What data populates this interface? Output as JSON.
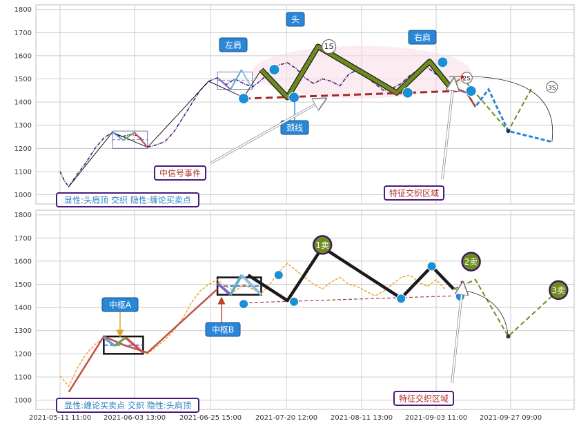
{
  "colors": {
    "accent_blue": "#1a8fd6",
    "olive": "#6e8b1e",
    "purple": "#4b1a7a",
    "dark_red": "#a52a2a",
    "orange_price": "#f0a020",
    "callout_bg": "#2a86d6",
    "signal_text": "#b0302a"
  },
  "chart_data": [
    {
      "type": "line",
      "panel": "top",
      "x_tick_labels": [],
      "y_ticks": [
        1000,
        1100,
        1200,
        1300,
        1400,
        1500,
        1600,
        1700,
        1800
      ],
      "ylim": [
        960,
        1820
      ],
      "series": [
        {
          "role": "price",
          "points": [
            [
              0,
              1100
            ],
            [
              2,
              1060
            ],
            [
              4,
              1035
            ],
            [
              8,
              1090
            ],
            [
              12,
              1140
            ],
            [
              16,
              1200
            ],
            [
              20,
              1245
            ],
            [
              24,
              1270
            ],
            [
              28,
              1250
            ],
            [
              32,
              1260
            ],
            [
              36,
              1255
            ],
            [
              40,
              1205
            ],
            [
              44,
              1215
            ],
            [
              48,
              1230
            ],
            [
              52,
              1270
            ],
            [
              56,
              1330
            ],
            [
              60,
              1390
            ],
            [
              64,
              1450
            ],
            [
              68,
              1490
            ],
            [
              72,
              1505
            ],
            [
              74,
              1490
            ],
            [
              76,
              1475
            ],
            [
              80,
              1500
            ],
            [
              84,
              1480
            ],
            [
              88,
              1465
            ],
            [
              92,
              1495
            ],
            [
              96,
              1530
            ],
            [
              100,
              1560
            ],
            [
              104,
              1570
            ],
            [
              108,
              1545
            ],
            [
              112,
              1505
            ],
            [
              116,
              1480
            ],
            [
              120,
              1500
            ],
            [
              124,
              1490
            ],
            [
              128,
              1470
            ],
            [
              132,
              1520
            ],
            [
              136,
              1540
            ],
            [
              140,
              1510
            ],
            [
              144,
              1480
            ],
            [
              148,
              1450
            ],
            [
              152,
              1460
            ],
            [
              156,
              1480
            ],
            [
              160,
              1515
            ],
            [
              164,
              1540
            ],
            [
              168,
              1550
            ],
            [
              172,
              1520
            ],
            [
              176,
              1490
            ]
          ]
        },
        {
          "role": "stroke_segments",
          "points": [
            [
              4,
              1035
            ],
            [
              24,
              1270
            ],
            [
              40,
              1205
            ],
            [
              68,
              1490
            ],
            [
              84,
              1420
            ],
            [
              92,
              1540
            ],
            [
              104,
              1420
            ],
            [
              118,
              1640
            ],
            [
              154,
              1440
            ],
            [
              169,
              1575
            ],
            [
              178,
              1470
            ]
          ]
        },
        {
          "role": "projection",
          "points": [
            [
              178,
              1470
            ],
            [
              186,
              1440
            ],
            [
              190,
              1380
            ],
            [
              196,
              1455
            ],
            [
              205,
              1275
            ],
            [
              225,
              1228
            ]
          ]
        },
        {
          "role": "projection_alt",
          "points": [
            [
              178,
              1470
            ],
            [
              184,
              1505
            ],
            [
              205,
              1275
            ],
            [
              216,
              1465
            ]
          ]
        },
        {
          "role": "neckline",
          "points": [
            [
              84,
              1415
            ],
            [
              182,
              1448
            ]
          ]
        },
        {
          "role": "center_box",
          "points": [
            [
              24,
              1200
            ],
            [
              40,
              1275
            ]
          ]
        },
        {
          "role": "center_box_2",
          "points": [
            [
              72,
              1455
            ],
            [
              88,
              1530
            ]
          ]
        }
      ],
      "key_points": [
        {
          "x": 84,
          "y": 1415,
          "label": ""
        },
        {
          "x": 98,
          "y": 1540,
          "label": ""
        },
        {
          "x": 107,
          "y": 1420,
          "label": ""
        },
        {
          "x": 123,
          "y": 1640,
          "label": "1S"
        },
        {
          "x": 159,
          "y": 1440,
          "label": ""
        },
        {
          "x": 175,
          "y": 1572,
          "label": ""
        },
        {
          "x": 188,
          "y": 1448,
          "label": ""
        },
        {
          "x": 186,
          "y": 1505,
          "label": "2S"
        },
        {
          "x": 225,
          "y": 1465,
          "label": "3S"
        }
      ],
      "annotations": [
        {
          "text": "头",
          "style": "blue_box"
        },
        {
          "text": "左肩",
          "style": "blue_box"
        },
        {
          "text": "右肩",
          "style": "blue_box"
        },
        {
          "text": "颈线",
          "style": "blue_box"
        },
        {
          "text": "中信号事件",
          "style": "purple_box"
        },
        {
          "text": "特征交织区域",
          "style": "purple_box"
        },
        {
          "text": "显性:头肩顶 交织 隐性:缠论买卖点",
          "style": "purple_box"
        }
      ]
    },
    {
      "type": "line",
      "panel": "bottom",
      "x_tick_labels": [
        "2021-05-11 11:00",
        "2021-06-03 13:00",
        "2021-06-25 15:00",
        "2021-07-20 12:00",
        "2021-08-11 13:00",
        "2021-09-03 11:00",
        "2021-09-27 09:00"
      ],
      "y_ticks": [
        1000,
        1100,
        1200,
        1300,
        1400,
        1500,
        1600,
        1700,
        1800
      ],
      "ylim": [
        960,
        1820
      ],
      "series": [
        {
          "role": "price",
          "points": [
            [
              0,
              1105
            ],
            [
              4,
              1060
            ],
            [
              8,
              1140
            ],
            [
              12,
              1200
            ],
            [
              16,
              1240
            ],
            [
              20,
              1270
            ],
            [
              24,
              1260
            ],
            [
              28,
              1240
            ],
            [
              32,
              1230
            ],
            [
              36,
              1215
            ],
            [
              40,
              1200
            ],
            [
              44,
              1230
            ],
            [
              48,
              1260
            ],
            [
              52,
              1300
            ],
            [
              56,
              1350
            ],
            [
              60,
              1420
            ],
            [
              64,
              1470
            ],
            [
              68,
              1500
            ],
            [
              72,
              1520
            ],
            [
              76,
              1490
            ],
            [
              80,
              1470
            ],
            [
              84,
              1500
            ],
            [
              88,
              1480
            ],
            [
              92,
              1460
            ],
            [
              96,
              1500
            ],
            [
              100,
              1555
            ],
            [
              104,
              1590
            ],
            [
              108,
              1560
            ],
            [
              112,
              1530
            ],
            [
              116,
              1500
            ],
            [
              120,
              1480
            ],
            [
              124,
              1510
            ],
            [
              128,
              1530
            ],
            [
              132,
              1500
            ],
            [
              136,
              1490
            ],
            [
              140,
              1470
            ],
            [
              144,
              1450
            ],
            [
              148,
              1470
            ],
            [
              152,
              1500
            ],
            [
              156,
              1530
            ],
            [
              160,
              1540
            ],
            [
              164,
              1510
            ],
            [
              168,
              1490
            ],
            [
              172,
              1520
            ],
            [
              176,
              1480
            ]
          ]
        },
        {
          "role": "stroke_segments",
          "points": [
            [
              4,
              1035
            ],
            [
              20,
              1275
            ],
            [
              30,
              1235
            ],
            [
              40,
              1205
            ],
            [
              72,
              1480
            ],
            [
              86,
              1540
            ],
            [
              104,
              1430
            ],
            [
              120,
              1660
            ],
            [
              156,
              1440
            ],
            [
              170,
              1578
            ],
            [
              180,
              1480
            ]
          ]
        },
        {
          "role": "projection",
          "points": [
            [
              180,
              1480
            ],
            [
              190,
              1520
            ],
            [
              205,
              1275
            ],
            [
              228,
              1475
            ]
          ]
        },
        {
          "role": "neckline",
          "points": [
            [
              84,
              1420
            ],
            [
              180,
              1450
            ]
          ]
        },
        {
          "role": "center_box",
          "points": [
            [
              20,
              1200
            ],
            [
              38,
              1275
            ]
          ]
        },
        {
          "role": "center_box_2",
          "points": [
            [
              72,
              1455
            ],
            [
              92,
              1530
            ]
          ]
        }
      ],
      "key_points": [
        {
          "x": 84,
          "y": 1415,
          "label": ""
        },
        {
          "x": 100,
          "y": 1540,
          "label": ""
        },
        {
          "x": 107,
          "y": 1425,
          "label": ""
        },
        {
          "x": 120,
          "y": 1670,
          "label": "1卖"
        },
        {
          "x": 156,
          "y": 1438,
          "label": ""
        },
        {
          "x": 170,
          "y": 1578,
          "label": ""
        },
        {
          "x": 183,
          "y": 1448,
          "label": ""
        },
        {
          "x": 188,
          "y": 1598,
          "label": "2卖"
        },
        {
          "x": 228,
          "y": 1475,
          "label": "3卖"
        }
      ],
      "annotations": [
        {
          "text": "中枢A",
          "style": "blue_box"
        },
        {
          "text": "中枢B",
          "style": "blue_box"
        },
        {
          "text": "特征交织区域",
          "style": "purple_box"
        },
        {
          "text": "显性:缠论买卖点 交织 隐性:头肩顶",
          "style": "purple_box"
        }
      ]
    }
  ]
}
